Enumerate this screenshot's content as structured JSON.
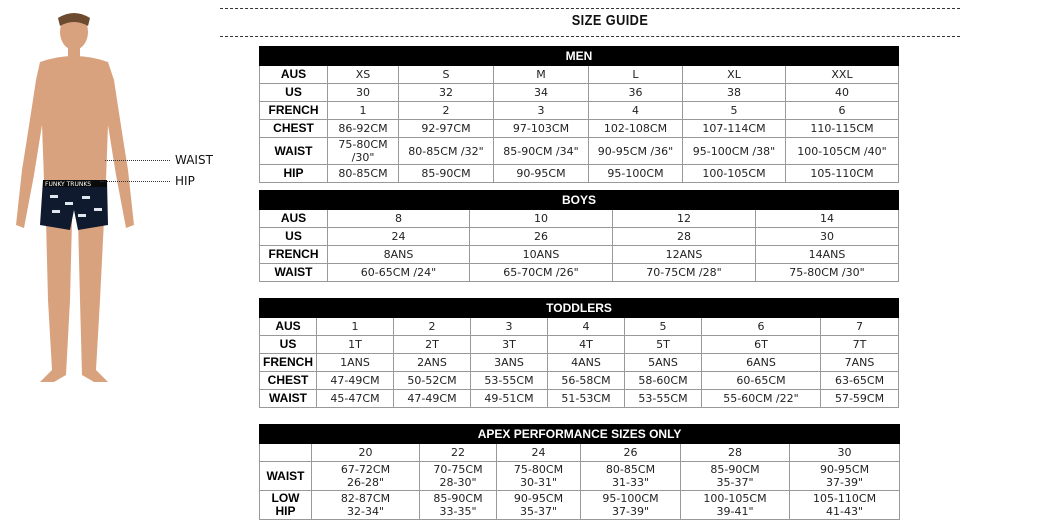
{
  "title": "SIZE GUIDE",
  "figure": {
    "waist_label": "WAIST",
    "hip_label": "HIP",
    "brand_text": "FUNKY TRUNKS"
  },
  "tables": [
    {
      "name": "men",
      "title": "MEN",
      "widths": [
        68,
        71,
        95,
        95,
        94,
        103,
        113
      ],
      "rows": [
        [
          "AUS",
          "XS",
          "S",
          "M",
          "L",
          "XL",
          "XXL"
        ],
        [
          "US",
          "30",
          "32",
          "34",
          "36",
          "38",
          "40"
        ],
        [
          "FRENCH",
          "1",
          "2",
          "3",
          "4",
          "5",
          "6"
        ],
        [
          "CHEST",
          "86-92CM",
          "92-97CM",
          "97-103CM",
          "102-108CM",
          "107-114CM",
          "110-115CM"
        ],
        [
          "WAIST",
          "75-80CM /30\"",
          "80-85CM /32\"",
          "85-90CM /34\"",
          "90-95CM /36\"",
          "95-100CM /38\"",
          "100-105CM /40\""
        ],
        [
          "HIP",
          "80-85CM",
          "85-90CM",
          "90-95CM",
          "95-100CM",
          "100-105CM",
          "105-110CM"
        ]
      ]
    },
    {
      "name": "boys",
      "title": "BOYS",
      "widths": [
        68,
        142,
        143,
        143,
        143
      ],
      "rows": [
        [
          "AUS",
          "8",
          "10",
          "12",
          "14"
        ],
        [
          "US",
          "24",
          "26",
          "28",
          "30"
        ],
        [
          "FRENCH",
          "8ANS",
          "10ANS",
          "12ANS",
          "14ANS"
        ],
        [
          "WAIST",
          "60-65CM /24\"",
          "65-70CM /26\"",
          "70-75CM /28\"",
          "75-80CM /30\""
        ]
      ]
    },
    {
      "name": "toddlers",
      "title": "TODDLERS",
      "widths": [
        57,
        77,
        77,
        77,
        77,
        77,
        119,
        78
      ],
      "rows": [
        [
          "AUS",
          "1",
          "2",
          "3",
          "4",
          "5",
          "6",
          "7"
        ],
        [
          "US",
          "1T",
          "2T",
          "3T",
          "4T",
          "5T",
          "6T",
          "7T"
        ],
        [
          "FRENCH",
          "1ANS",
          "2ANS",
          "3ANS",
          "4ANS",
          "5ANS",
          "6ANS",
          "7ANS"
        ],
        [
          "CHEST",
          "47-49CM",
          "50-52CM",
          "53-55CM",
          "56-58CM",
          "58-60CM",
          "60-65CM",
          "63-65CM"
        ],
        [
          "WAIST",
          "45-47CM",
          "47-49CM",
          "49-51CM",
          "51-53CM",
          "53-55CM",
          "55-60CM /22\"",
          "57-59CM"
        ]
      ]
    },
    {
      "name": "apex",
      "title": "APEX PERFORMANCE SIZES ONLY",
      "widths": [
        52,
        108,
        77,
        84,
        100,
        109,
        110
      ],
      "rows": [
        [
          "",
          "20",
          "22",
          "24",
          "26",
          "28",
          "30"
        ],
        [
          "WAIST",
          "67-72CM\n26-28\"",
          "70-75CM\n28-30\"",
          "75-80CM\n30-31\"",
          "80-85CM\n31-33\"",
          "85-90CM\n35-37\"",
          "90-95CM\n37-39\""
        ],
        [
          "LOW HIP",
          "82-87CM\n32-34\"",
          "85-90CM\n33-35\"",
          "90-95CM\n35-37\"",
          "95-100CM\n37-39\"",
          "100-105CM\n39-41\"",
          "105-110CM\n41-43\""
        ]
      ]
    }
  ]
}
